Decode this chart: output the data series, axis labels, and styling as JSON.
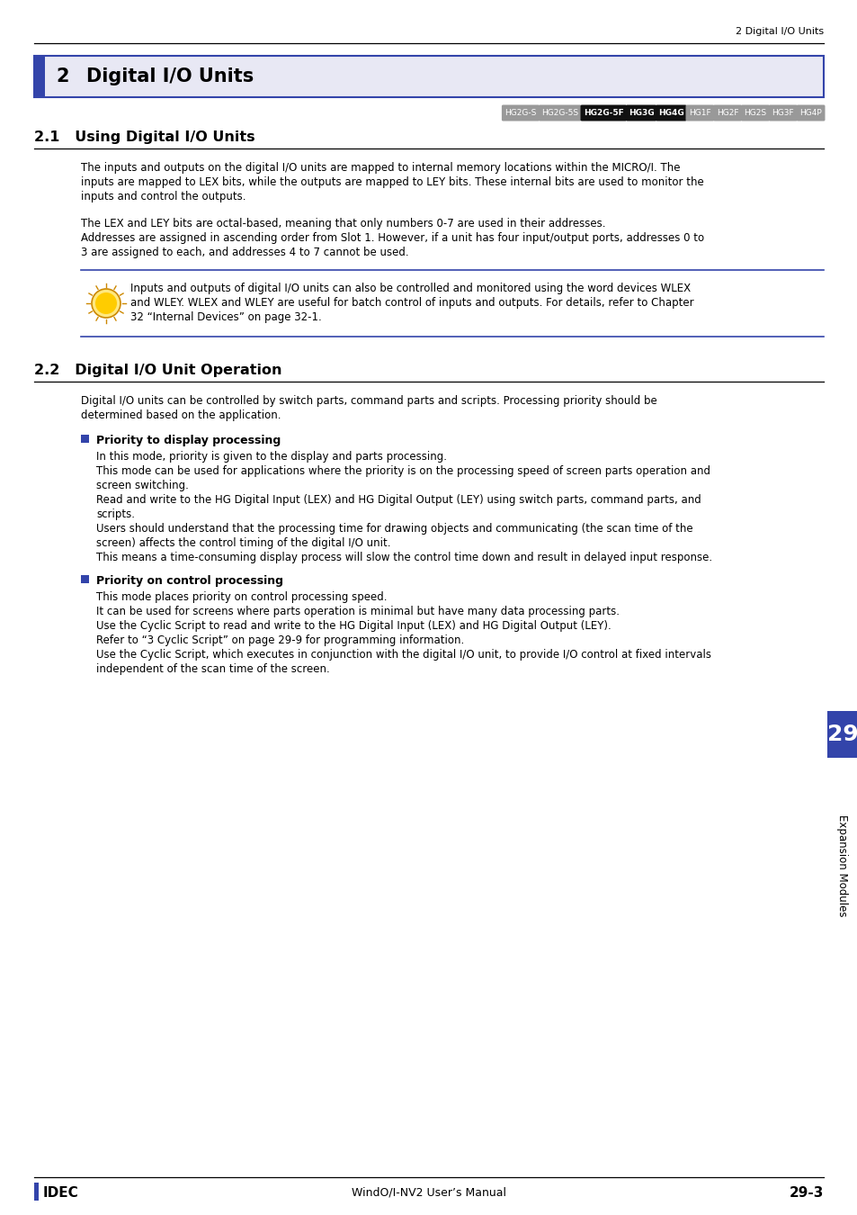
{
  "page_header_right": "2 Digital I/O Units",
  "chapter_number": "2",
  "chapter_title": "Digital I/O Units",
  "chapter_header_bg": "#e8e8f4",
  "chapter_header_border": "#3344aa",
  "tags": [
    {
      "text": "HG2G-S",
      "bg": "#999999",
      "fg": "#ffffff",
      "bold": false
    },
    {
      "text": "HG2G-5S",
      "bg": "#999999",
      "fg": "#ffffff",
      "bold": false
    },
    {
      "text": "HG2G-5F",
      "bg": "#111111",
      "fg": "#ffffff",
      "bold": true
    },
    {
      "text": "HG3G",
      "bg": "#111111",
      "fg": "#ffffff",
      "bold": true
    },
    {
      "text": "HG4G",
      "bg": "#111111",
      "fg": "#ffffff",
      "bold": true
    },
    {
      "text": "HG1F",
      "bg": "#999999",
      "fg": "#ffffff",
      "bold": false
    },
    {
      "text": "HG2F",
      "bg": "#999999",
      "fg": "#ffffff",
      "bold": false
    },
    {
      "text": "HG2S",
      "bg": "#999999",
      "fg": "#ffffff",
      "bold": false
    },
    {
      "text": "HG3F",
      "bg": "#999999",
      "fg": "#ffffff",
      "bold": false
    },
    {
      "text": "HG4P",
      "bg": "#999999",
      "fg": "#ffffff",
      "bold": false
    }
  ],
  "section_21_title": "2.1   Using Digital I/O Units",
  "para1_line1": "The inputs and outputs on the digital I/O units are mapped to internal memory locations within the MICRO/I. The",
  "para1_line2": "inputs are mapped to LEX bits, while the outputs are mapped to LEY bits. These internal bits are used to monitor the",
  "para1_line3": "inputs and control the outputs.",
  "para2_line1": "The LEX and LEY bits are octal-based, meaning that only numbers 0-7 are used in their addresses.",
  "para2_line2": "Addresses are assigned in ascending order from Slot 1. However, if a unit has four input/output ports, addresses 0 to",
  "para2_line3": "3 are assigned to each, and addresses 4 to 7 cannot be used.",
  "note_line1": "Inputs and outputs of digital I/O units can also be controlled and monitored using the word devices WLEX",
  "note_line2": "and WLEY. WLEX and WLEY are useful for batch control of inputs and outputs. For details, refer to Chapter",
  "note_line3": "32 “Internal Devices” on page 32-1.",
  "section_22_title": "2.2   Digital I/O Unit Operation",
  "intro_line1": "Digital I/O units can be controlled by switch parts, command parts and scripts. Processing priority should be",
  "intro_line2": "determined based on the application.",
  "bullet1_title": "Priority to display processing",
  "bullet1_lines": [
    "In this mode, priority is given to the display and parts processing.",
    "This mode can be used for applications where the priority is on the processing speed of screen parts operation and",
    "screen switching.",
    "Read and write to the HG Digital Input (LEX) and HG Digital Output (LEY) using switch parts, command parts, and",
    "scripts.",
    "Users should understand that the processing time for drawing objects and communicating (the scan time of the",
    "screen) affects the control timing of the digital I/O unit.",
    "This means a time-consuming display process will slow the control time down and result in delayed input response."
  ],
  "bullet2_title": "Priority on control processing",
  "bullet2_lines": [
    "This mode places priority on control processing speed.",
    "It can be used for screens where parts operation is minimal but have many data processing parts.",
    "Use the Cyclic Script to read and write to the HG Digital Input (LEX) and HG Digital Output (LEY).",
    "Refer to “3 Cyclic Script” on page 29-9 for programming information.",
    "Use the Cyclic Script, which executes in conjunction with the digital I/O unit, to provide I/O control at fixed intervals",
    "independent of the scan time of the screen."
  ],
  "sidebar_number": "29",
  "sidebar_label": "Expansion Modules",
  "sidebar_bg": "#3344aa",
  "footer_logo": "IDEC",
  "footer_center": "WindO/I-NV2 User’s Manual",
  "footer_right": "29-3",
  "bg_color": "#ffffff",
  "text_color": "#000000"
}
